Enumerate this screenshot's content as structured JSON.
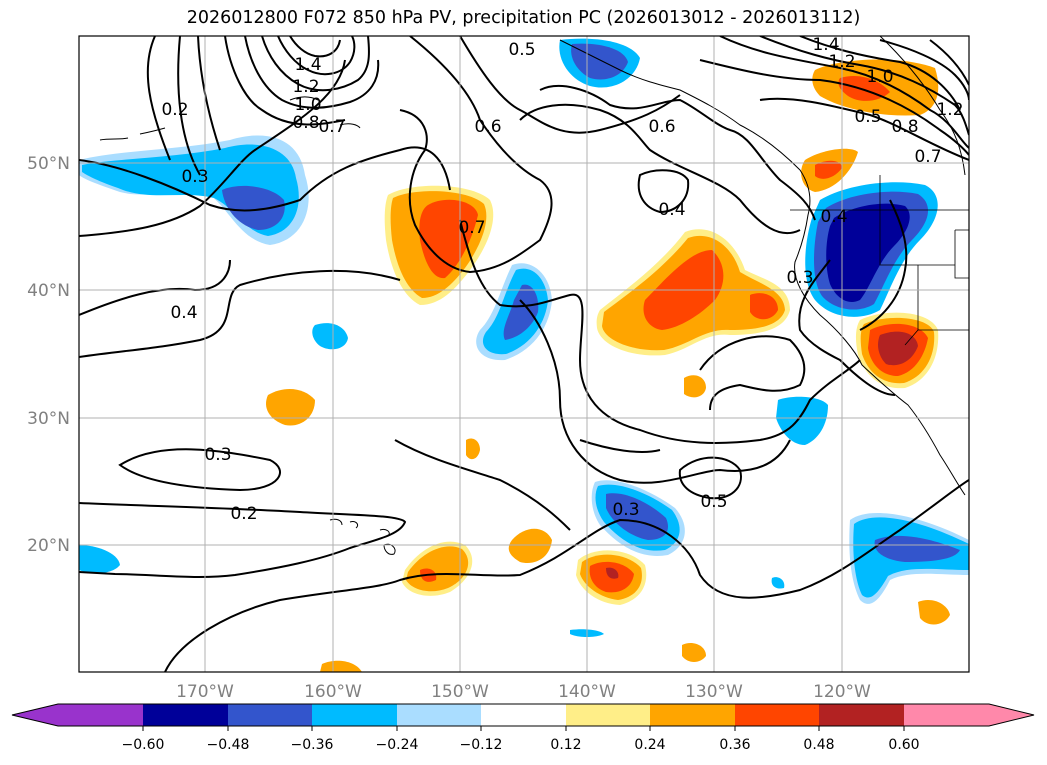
{
  "title": "2026012800 F072 850 hPa PV, precipitation PC (2026013012 - 2026013112)",
  "latitude_labels": [
    "50°N",
    "40°N",
    "30°N",
    "20°N"
  ],
  "longitude_labels": [
    "170°W",
    "160°W",
    "150°W",
    "140°W",
    "130°W",
    "120°W"
  ],
  "contour_labels": [
    "1.4",
    "1.2",
    "1.0",
    "0.8",
    "0.7",
    "0.5",
    "0.6",
    "0.6",
    "0.2",
    "0.3",
    "0.7",
    "0.4",
    "0.4",
    "0.3",
    "0.3",
    "0.2",
    "0.3",
    "0.5",
    "1.4",
    "1.2",
    "1.0",
    "0.5",
    "0.8",
    "0.7",
    "1.2",
    "0.4"
  ],
  "colorbar": {
    "ticks": [
      "−0.60",
      "−0.48",
      "−0.36",
      "−0.24",
      "−0.12",
      "0.12",
      "0.24",
      "0.36",
      "0.48",
      "0.60"
    ],
    "colors": [
      "#9933cc",
      "#000099",
      "#3355cc",
      "#00bbff",
      "#aaddff",
      "#ffffff",
      "#ffee88",
      "#ffa500",
      "#ff4500",
      "#b22222",
      "#ff88aa"
    ]
  },
  "chart_data": {
    "type": "map",
    "fields": [
      "850 hPa PV (contours)",
      "precipitation PC (shaded)"
    ],
    "extent": {
      "lon": [
        -180,
        -110
      ],
      "lat": [
        10,
        60
      ]
    }
  }
}
